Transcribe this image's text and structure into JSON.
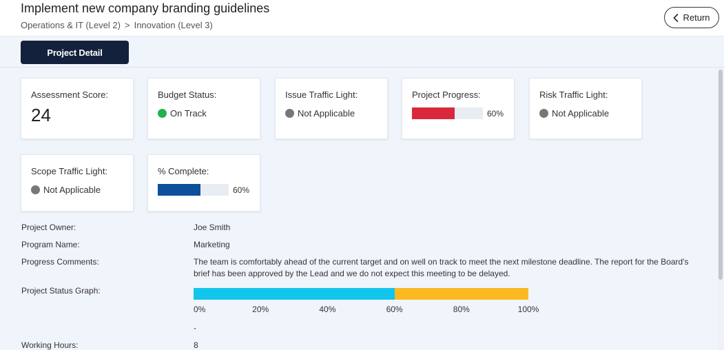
{
  "header": {
    "title": "Implement new company branding guidelines",
    "breadcrumb": [
      {
        "label": "Operations & IT (Level 2)"
      },
      {
        "label": "Innovation (Level 3)"
      }
    ],
    "breadcrumb_separator": ">",
    "return_label": "Return"
  },
  "tabs": {
    "active_label": "Project Detail"
  },
  "cards": {
    "assessment": {
      "label": "Assessment Score:",
      "value": "24"
    },
    "budget": {
      "label": "Budget Status:",
      "value": "On Track",
      "color": "#22b14c"
    },
    "issue": {
      "label": "Issue Traffic Light:",
      "value": "Not Applicable",
      "color": "#777777"
    },
    "progress": {
      "label": "Project Progress:",
      "percent_label": "60%",
      "percent": 60,
      "color": "#d9283b"
    },
    "risk": {
      "label": "Risk Traffic Light:",
      "value": "Not Applicable",
      "color": "#777777"
    },
    "scope": {
      "label": "Scope Traffic Light:",
      "value": "Not Applicable",
      "color": "#777777"
    },
    "complete": {
      "label": "% Complete:",
      "percent_label": "60%",
      "percent": 60,
      "color": "#0c4f9c"
    }
  },
  "details": {
    "owner_label": "Project Owner:",
    "owner_value": "Joe Smith",
    "program_label": "Program Name:",
    "program_value": "Marketing",
    "comments_label": "Progress Comments:",
    "comments_value": "The team is comfortably ahead of the current target and on well on track to meet the next milestone deadline. The report for the Board's brief has been approved by the Lead and we do not expect this meeting to be delayed.",
    "graph_label": "Project Status Graph:",
    "graph_dash": "-",
    "hours_label": "Working Hours:",
    "hours_value": "8"
  },
  "status_graph": {
    "segments": [
      {
        "percent": 60,
        "color": "#12c5ec"
      },
      {
        "percent": 40,
        "color": "#fbb921"
      }
    ],
    "ticks": [
      "0%",
      "20%",
      "40%",
      "60%",
      "80%",
      "100%"
    ]
  }
}
